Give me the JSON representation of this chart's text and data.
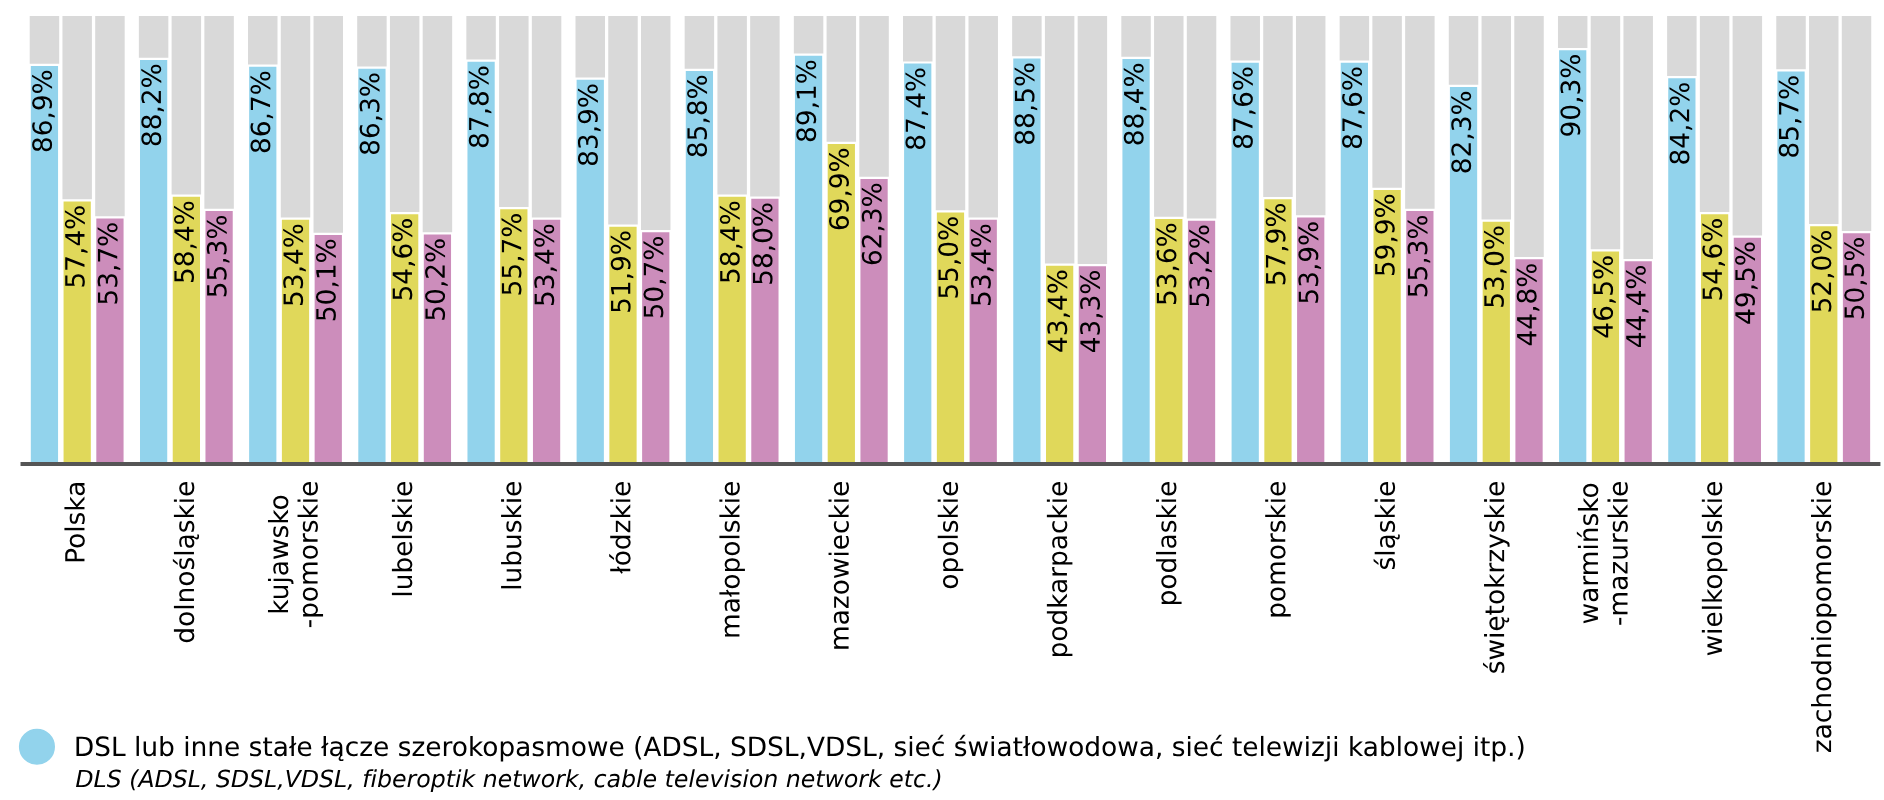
{
  "chart_data": {
    "type": "bar",
    "categories": [
      "Polska",
      "dolnośląskie",
      "kujawsko\n-pomorskie",
      "lubelskie",
      "lubuskie",
      "łódzkie",
      "małopolskie",
      "mazowieckie",
      "opolskie",
      "podkarpackie",
      "podlaskie",
      "pomorskie",
      "śląskie",
      "świętokrzyskie",
      "warmińsko\n-mazurskie",
      "wielkopolskie",
      "zachodniopomorskie"
    ],
    "series": [
      {
        "name": "DSL lub inne stałe łącze szerokopasmowe (ADSL, SDSL,VDSL, sieć światłowodowa, sieć telewizji kablowej itp.)",
        "color": "#92d3ec",
        "values": [
          86.9,
          88.2,
          86.7,
          86.3,
          87.8,
          83.9,
          85.8,
          89.1,
          87.4,
          88.5,
          88.4,
          87.6,
          87.6,
          82.3,
          90.3,
          84.2,
          85.7
        ],
        "value_labels": [
          "86,9%",
          "88,2%",
          "86,7%",
          "86,3%",
          "87,8%",
          "83,9%",
          "85,8%",
          "89,1%",
          "87,4%",
          "88,5%",
          "88,4%",
          "87,6%",
          "87,6%",
          "82,3%",
          "90,3%",
          "84,2%",
          "85,7%"
        ]
      },
      {
        "color": "#e0d85a",
        "values": [
          57.4,
          58.4,
          53.4,
          54.6,
          55.7,
          51.9,
          58.4,
          69.9,
          55.0,
          43.4,
          53.6,
          57.9,
          59.9,
          53.0,
          46.5,
          54.6,
          52.0
        ],
        "value_labels": [
          "57,4%",
          "58,4%",
          "53,4%",
          "54,6%",
          "55,7%",
          "51,9%",
          "58,4%",
          "69,9%",
          "55,0%",
          "43,4%",
          "53,6%",
          "57,9%",
          "59,9%",
          "53,0%",
          "46,5%",
          "54,6%",
          "52,0%"
        ]
      },
      {
        "color": "#cc8dbb",
        "values": [
          53.7,
          55.3,
          50.1,
          50.2,
          53.4,
          50.7,
          58.0,
          62.3,
          53.4,
          43.3,
          53.2,
          53.9,
          55.3,
          44.8,
          44.4,
          49.5,
          50.5
        ],
        "value_labels": [
          "53,7%",
          "55,3%",
          "50,1%",
          "50,2%",
          "53,4%",
          "50,7%",
          "58,0%",
          "62,3%",
          "53,4%",
          "43,3%",
          "53,2%",
          "53,9%",
          "55,3%",
          "44,8%",
          "44,4%",
          "49,5%",
          "50,5%"
        ]
      }
    ],
    "legend": "bottom left",
    "annotations": [
      "DLS (ADSL, SDSL,VDSL, fiberoptik network, cable television network etc.)"
    ]
  }
}
